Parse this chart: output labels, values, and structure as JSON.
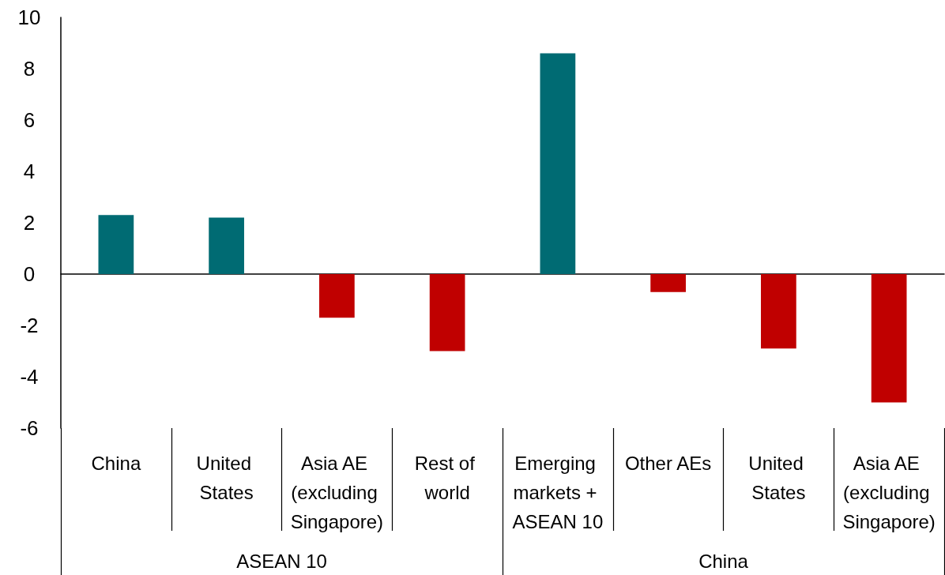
{
  "chart_data": {
    "type": "bar",
    "categories": [
      "China",
      "United States",
      "Asia AE (excluding Singapore)",
      "Rest of world",
      "Emerging markets + ASEAN 10",
      "Other AEs",
      "United States",
      "Asia AE (excluding Singapore)"
    ],
    "values": [
      2.3,
      2.2,
      -1.7,
      -3.0,
      8.6,
      -0.7,
      -2.9,
      -5.0
    ],
    "colors": [
      "#006b73",
      "#006b73",
      "#c00000",
      "#c00000",
      "#006b73",
      "#c00000",
      "#c00000",
      "#c00000"
    ],
    "annotations": [
      "ASEAN 10",
      "China"
    ],
    "ylim": [
      -6,
      10
    ],
    "yticks": [
      -6,
      -4,
      -2,
      0,
      2,
      4,
      6,
      8,
      10
    ]
  }
}
